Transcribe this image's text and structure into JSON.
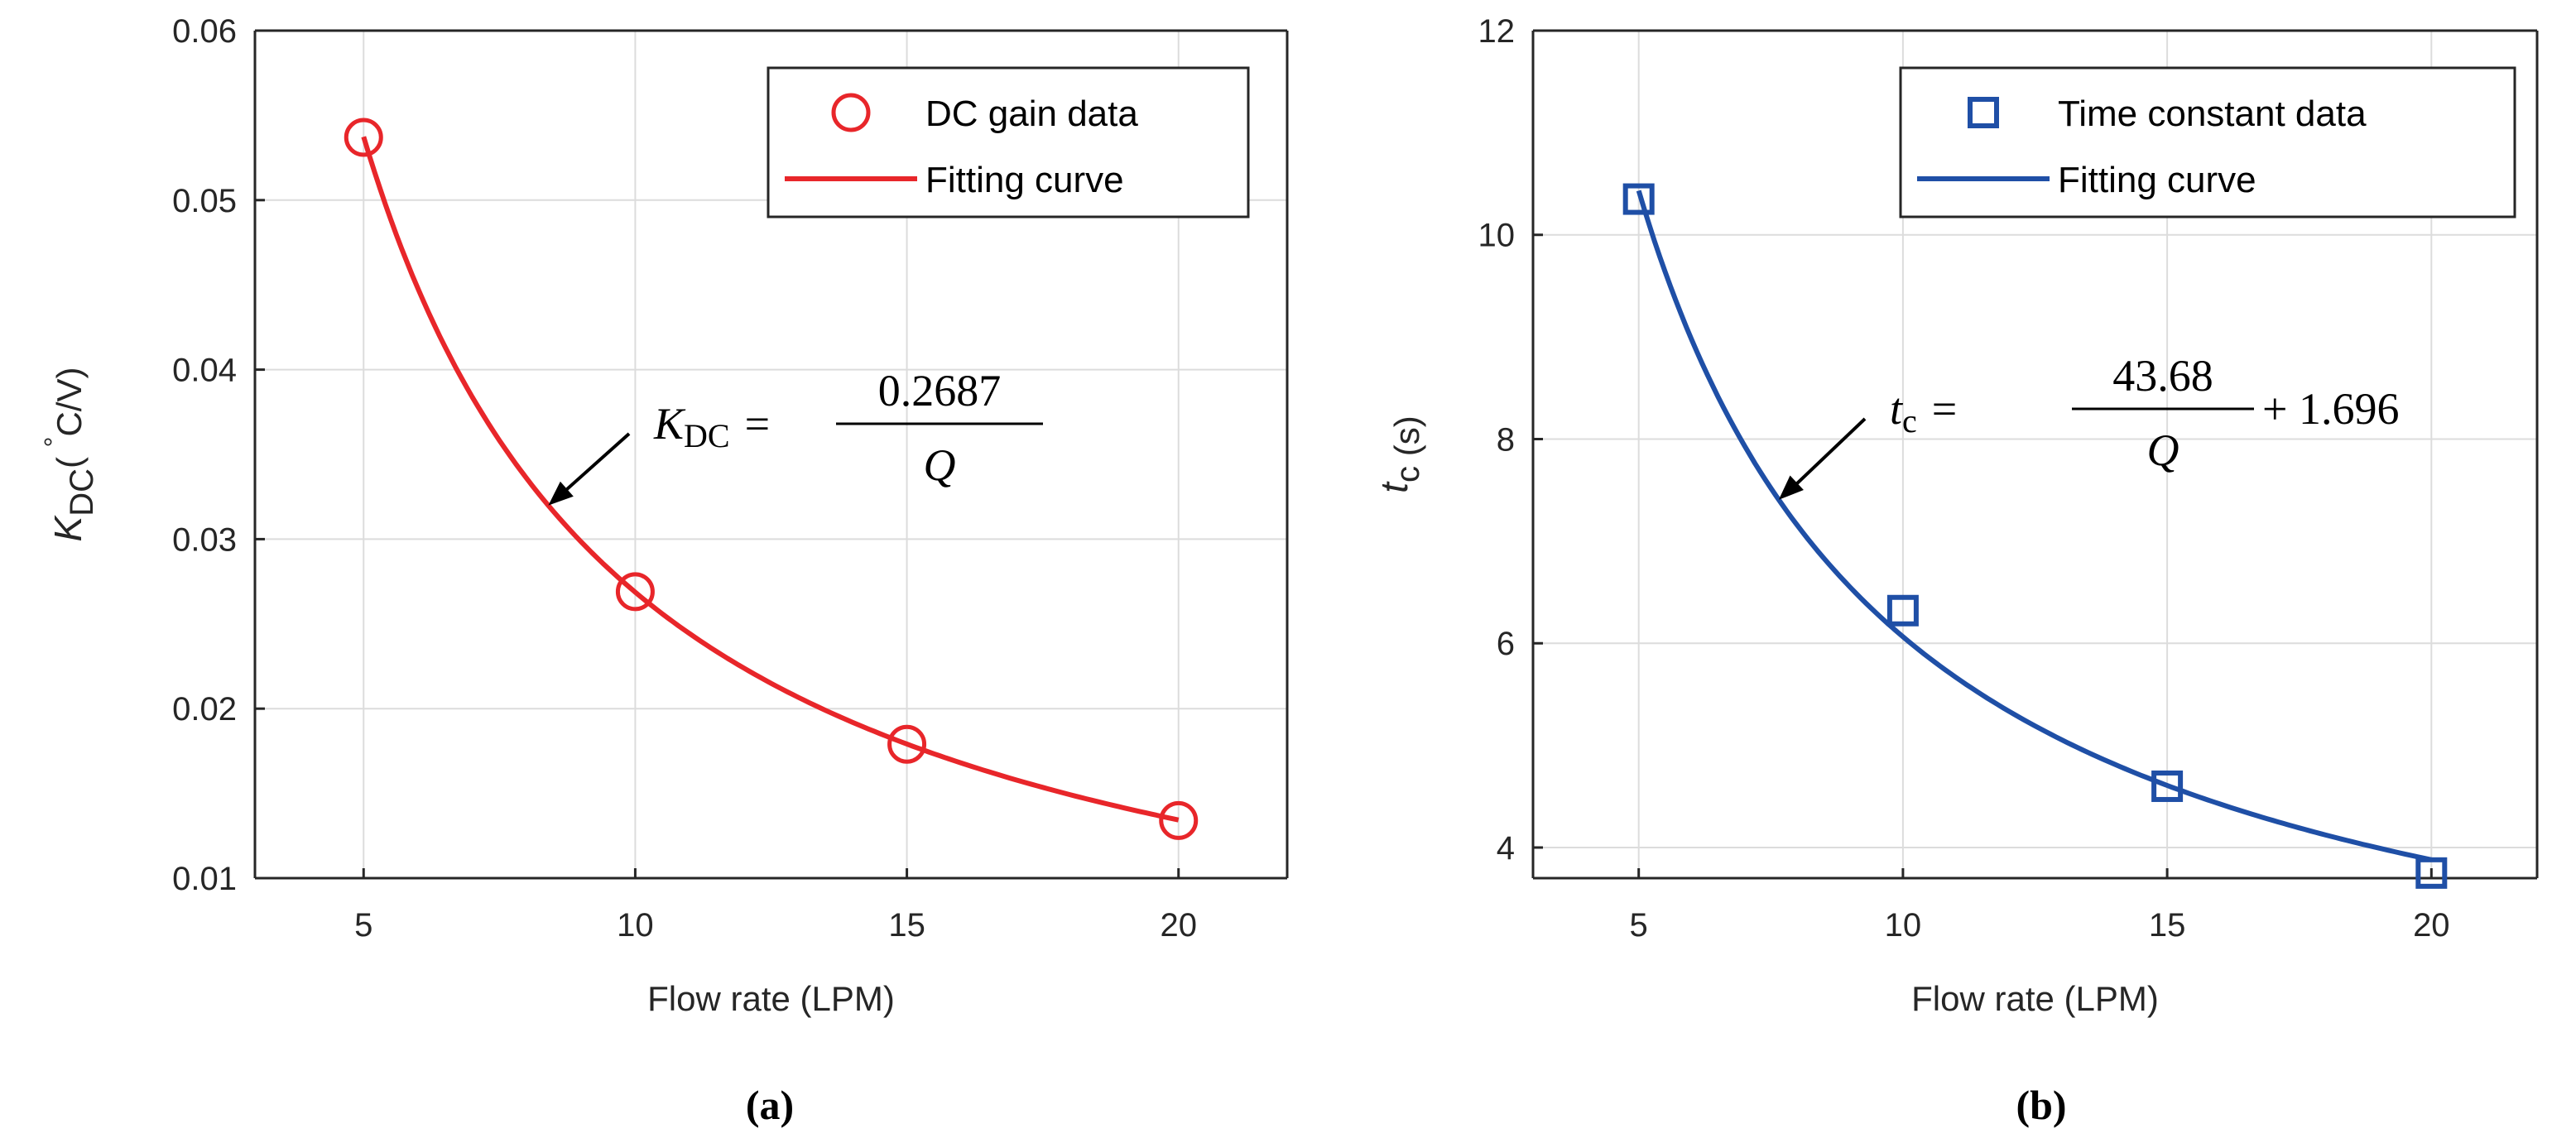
{
  "chart_data": [
    {
      "type": "scatter",
      "panel_label": "(a)",
      "xlabel": "Flow rate (LPM)",
      "ylabel": {
        "symbol": "K",
        "sub": "DC",
        "unit_pre": "( ",
        "degree": "°",
        "unit": "C/V)"
      },
      "xlim": [
        3,
        22
      ],
      "ylim": [
        0.01,
        0.06
      ],
      "xticks": [
        5,
        10,
        15,
        20
      ],
      "xtick_labels": [
        "5",
        "10",
        "15",
        "20"
      ],
      "yticks": [
        0.01,
        0.02,
        0.03,
        0.04,
        0.05,
        0.06
      ],
      "ytick_labels": [
        "0.01",
        "0.02",
        "0.03",
        "0.04",
        "0.05",
        "0.06"
      ],
      "grid": true,
      "legend_position": "top-right",
      "color": "#e8262a",
      "series": [
        {
          "name": "DC gain data",
          "kind": "markers",
          "marker": "circle",
          "x": [
            5,
            10,
            15,
            20
          ],
          "y": [
            0.0537,
            0.0269,
            0.0179,
            0.0134
          ]
        },
        {
          "name": "Fitting curve",
          "kind": "curve",
          "formula": "0.2687/Q",
          "a": 0.2687,
          "b": 0,
          "x_range": [
            5,
            20
          ]
        }
      ],
      "equation": {
        "lhs": "K",
        "lhs_sub": "DC",
        "eq": "=",
        "num": "0.2687",
        "den": "Q",
        "tail": ""
      },
      "annotation_at_x": 8.4
    },
    {
      "type": "scatter",
      "panel_label": "(b)",
      "xlabel": "Flow rate (LPM)",
      "ylabel": {
        "symbol": "t",
        "sub": "c",
        "unit_pre": "",
        "degree": "",
        "unit": " (s)"
      },
      "xlim": [
        3,
        22
      ],
      "ylim": [
        3.7,
        12
      ],
      "xticks": [
        5,
        10,
        15,
        20
      ],
      "xtick_labels": [
        "5",
        "10",
        "15",
        "20"
      ],
      "yticks": [
        4,
        6,
        8,
        10,
        12
      ],
      "ytick_labels": [
        "4",
        "6",
        "8",
        "10",
        "12"
      ],
      "grid": true,
      "legend_position": "top-right",
      "color": "#1f4fa6",
      "series": [
        {
          "name": "Time constant data",
          "kind": "markers",
          "marker": "square",
          "x": [
            5,
            10,
            15,
            20
          ],
          "y": [
            10.35,
            6.32,
            4.6,
            3.75
          ]
        },
        {
          "name": "Fitting curve",
          "kind": "curve",
          "formula": "43.68/Q + 1.696",
          "a": 43.68,
          "b": 1.696,
          "x_range": [
            5,
            20
          ]
        }
      ],
      "equation": {
        "lhs": "t",
        "lhs_sub": "c",
        "eq": "=",
        "num": "43.68",
        "den": "Q",
        "tail": "+ 1.696"
      },
      "annotation_at_x": 7.65
    }
  ]
}
